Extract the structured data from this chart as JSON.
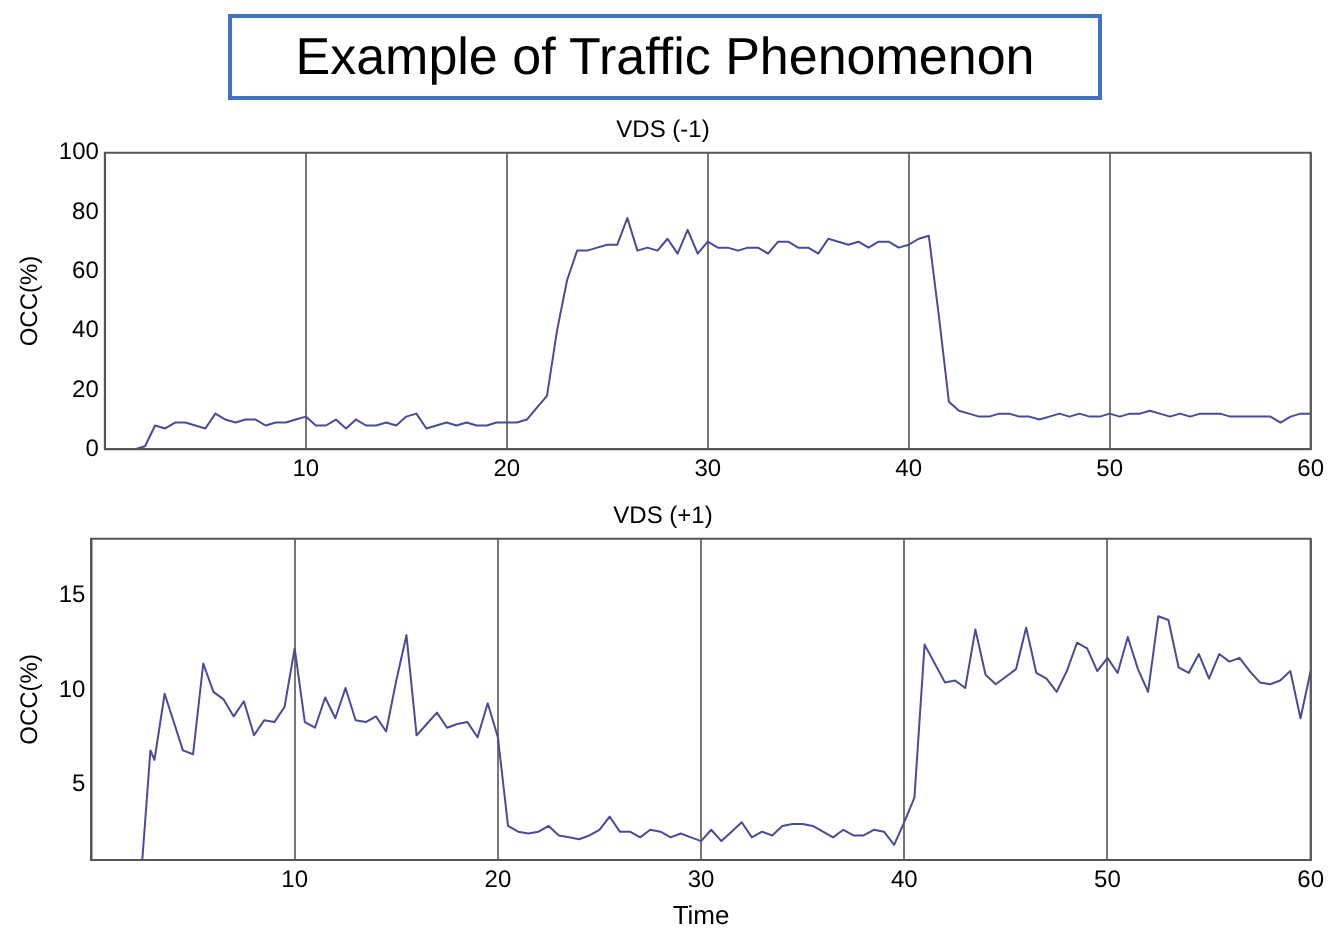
{
  "chart_data": [
    {
      "type": "other",
      "title": "Example of Traffic Phenomenon"
    },
    {
      "type": "line",
      "title": "VDS (-1)",
      "ylabel": "OCC(%)",
      "xlim": [
        0,
        60
      ],
      "ylim": [
        0,
        100
      ],
      "xticks": [
        10,
        20,
        30,
        40,
        50,
        60
      ],
      "yticks": [
        0,
        20,
        40,
        60,
        80,
        100
      ],
      "grid": "x",
      "marker": "none",
      "line_style": "solid",
      "x": [
        1.5,
        2,
        2.5,
        3,
        3.5,
        4,
        4.5,
        5,
        5.5,
        6,
        6.5,
        7,
        7.5,
        8,
        8.5,
        9,
        9.5,
        10,
        10.5,
        11,
        11.5,
        12,
        12.5,
        13,
        13.5,
        14,
        14.5,
        15,
        15.5,
        16,
        16.5,
        17,
        17.5,
        18,
        18.5,
        19,
        19.5,
        20,
        20.5,
        21,
        21.5,
        22,
        22.5,
        23,
        23.5,
        24,
        24.5,
        25,
        25.5,
        26,
        26.5,
        27,
        27.5,
        28,
        28.5,
        29,
        29.5,
        30,
        30.5,
        31,
        31.5,
        32,
        32.5,
        33,
        33.5,
        34,
        34.5,
        35,
        35.5,
        36,
        36.5,
        37,
        37.5,
        38,
        38.5,
        39,
        39.5,
        40,
        40.5,
        41,
        41.5,
        42,
        42.5,
        43,
        43.5,
        44,
        44.5,
        45,
        45.5,
        46,
        46.5,
        47,
        47.5,
        48,
        48.5,
        49,
        49.5,
        50,
        50.5,
        51,
        51.5,
        52,
        52.5,
        53,
        53.5,
        54,
        54.5,
        55,
        55.5,
        56,
        56.5,
        57,
        57.5,
        58,
        58.5,
        59,
        59.5,
        60
      ],
      "series": [
        {
          "color": "#4a4a9c",
          "values": [
            0,
            1,
            8,
            7,
            9,
            9,
            8,
            7,
            12,
            10,
            9,
            10,
            10,
            8,
            9,
            9,
            10,
            11,
            8,
            8,
            10,
            7,
            10,
            8,
            8,
            9,
            8,
            11,
            12,
            7,
            8,
            9,
            8,
            9,
            8,
            8,
            9,
            9,
            9,
            10,
            14,
            18,
            40,
            57,
            67,
            67,
            68,
            69,
            69,
            78,
            67,
            68,
            67,
            71,
            66,
            74,
            66,
            70,
            68,
            68,
            67,
            68,
            68,
            66,
            70,
            70,
            68,
            68,
            66,
            71,
            70,
            69,
            70,
            68,
            70,
            70,
            68,
            69,
            71,
            72,
            45,
            16,
            13,
            12,
            11,
            11,
            12,
            12,
            11,
            11,
            10,
            11,
            12,
            11,
            12,
            11,
            11,
            12,
            11,
            12,
            12,
            13,
            12,
            11,
            12,
            11,
            12,
            12,
            12,
            11,
            11,
            11,
            11,
            11,
            9,
            11,
            12,
            12
          ]
        }
      ]
    },
    {
      "type": "line",
      "title": "VDS (+1)",
      "xlabel": "Time",
      "ylabel": "OCC(%)",
      "xlim": [
        0,
        60
      ],
      "ylim": [
        1,
        18
      ],
      "xticks": [
        10,
        20,
        30,
        40,
        50,
        60
      ],
      "yticks": [
        5,
        10,
        15
      ],
      "grid": "x",
      "marker": "none",
      "line_style": "solid",
      "x": [
        2.5,
        2.9,
        3.1,
        3.6,
        4.5,
        5,
        5.5,
        6,
        6.5,
        7,
        7.5,
        8,
        8.5,
        9,
        9.5,
        10,
        10.5,
        11,
        11.5,
        12,
        12.5,
        13,
        13.5,
        14,
        14.5,
        15,
        15.5,
        16,
        16.5,
        17,
        17.5,
        18,
        18.5,
        19,
        19.5,
        20,
        20.5,
        21,
        21.5,
        22,
        22.5,
        23,
        23.5,
        24,
        24.5,
        25,
        25.5,
        26,
        26.5,
        27,
        27.5,
        28,
        28.5,
        29,
        29.5,
        30,
        30.5,
        31,
        31.5,
        32,
        32.5,
        33,
        33.5,
        34,
        34.5,
        35,
        35.5,
        36,
        36.5,
        37,
        37.5,
        38,
        38.5,
        39,
        39.5,
        40,
        40.5,
        41,
        41.5,
        42,
        42.5,
        43,
        43.5,
        44,
        44.5,
        45,
        45.5,
        46,
        46.5,
        47,
        47.5,
        48,
        48.5,
        49,
        49.5,
        50,
        50.5,
        51,
        51.5,
        52,
        52.5,
        53,
        53.5,
        54,
        54.5,
        55,
        55.5,
        56,
        56.5,
        57,
        57.5,
        58,
        58.5,
        59,
        59.5,
        60
      ],
      "series": [
        {
          "color": "#4a4a9c",
          "values": [
            1,
            6.8,
            6.3,
            9.8,
            6.8,
            6.6,
            11.4,
            9.9,
            9.5,
            8.6,
            9.4,
            7.6,
            8.4,
            8.3,
            9.1,
            12.2,
            8.3,
            8.0,
            9.6,
            8.5,
            10.1,
            8.4,
            8.3,
            8.6,
            7.8,
            10.5,
            12.9,
            7.6,
            8.2,
            8.8,
            8.0,
            8.2,
            8.3,
            7.5,
            9.3,
            7.5,
            2.8,
            2.5,
            2.4,
            2.5,
            2.8,
            2.3,
            2.2,
            2.1,
            2.3,
            2.6,
            3.3,
            2.5,
            2.5,
            2.2,
            2.6,
            2.5,
            2.2,
            2.4,
            2.2,
            2.0,
            2.6,
            2.0,
            2.5,
            3.0,
            2.2,
            2.5,
            2.3,
            2.8,
            2.9,
            2.9,
            2.8,
            2.5,
            2.2,
            2.6,
            2.3,
            2.3,
            2.6,
            2.5,
            1.8,
            3.0,
            4.3,
            12.4,
            11.4,
            10.4,
            10.5,
            10.1,
            13.2,
            10.8,
            10.3,
            10.7,
            11.1,
            13.3,
            10.9,
            10.6,
            9.9,
            11.0,
            12.5,
            12.2,
            11.0,
            11.7,
            10.9,
            12.8,
            11.1,
            9.9,
            13.9,
            13.7,
            11.2,
            10.9,
            11.9,
            10.6,
            11.9,
            11.5,
            11.7,
            11.0,
            10.4,
            10.3,
            10.5,
            11.0,
            8.5,
            11.0
          ]
        }
      ]
    }
  ]
}
